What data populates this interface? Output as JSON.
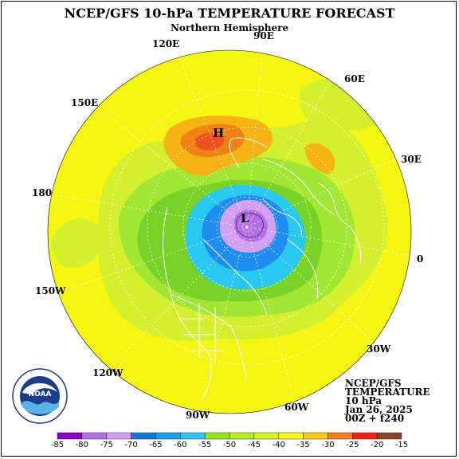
{
  "header": {
    "title": "NCEP/GFS 10-hPa TEMPERATURE FORECAST",
    "subtitle": "Northern Hemisphere"
  },
  "longitude_labels": [
    {
      "id": "90e",
      "text": "90E"
    },
    {
      "id": "120e",
      "text": "120E"
    },
    {
      "id": "60e",
      "text": "60E"
    },
    {
      "id": "150e",
      "text": "150E"
    },
    {
      "id": "30e",
      "text": "30E"
    },
    {
      "id": "180",
      "text": "180"
    },
    {
      "id": "0",
      "text": "0"
    },
    {
      "id": "150w",
      "text": "150W"
    },
    {
      "id": "30w",
      "text": "30W"
    },
    {
      "id": "120w",
      "text": "120W"
    },
    {
      "id": "60w",
      "text": "60W"
    },
    {
      "id": "90w",
      "text": "90W"
    }
  ],
  "markers": {
    "high": "H",
    "low": "L"
  },
  "info": {
    "line1": "NCEP/GFS",
    "line2": "TEMPERATURE",
    "line3": "10 hPa",
    "line4": "Jan 26, 2025",
    "line5": "00Z + f240"
  },
  "logo": {
    "text": "NOAA",
    "ring_text": "U.S. DEPARTMENT OF COMMERCE · NATIONAL OCEANIC AND ATMOSPHERIC ADMINISTRATION"
  },
  "colorbar": {
    "labels": [
      "-85",
      "-80",
      "-75",
      "-70",
      "-65",
      "-60",
      "-55",
      "-50",
      "-45",
      "-40",
      "-35",
      "-30",
      "-25",
      "-20",
      "-15"
    ],
    "colors": [
      "#8a00c8",
      "#b46ee6",
      "#d2a0f0",
      "#1478dc",
      "#1ea0f0",
      "#2dc8f5",
      "#96e61e",
      "#b4f01e",
      "#d7f51e",
      "#fafa14",
      "#fac814",
      "#f5821e",
      "#fa1e14",
      "#8c4628"
    ]
  },
  "colors": {
    "yellow": "#f5f514",
    "yellow_green": "#d2f02d",
    "light_green": "#a0e632",
    "green": "#78d228",
    "cyan": "#28c8f0",
    "blue": "#1e8cf0",
    "lavender": "#d2a0f0",
    "purple": "#b46ee6",
    "orange": "#f5b414",
    "dark_orange": "#f08214",
    "red_orange": "#f0501e"
  }
}
